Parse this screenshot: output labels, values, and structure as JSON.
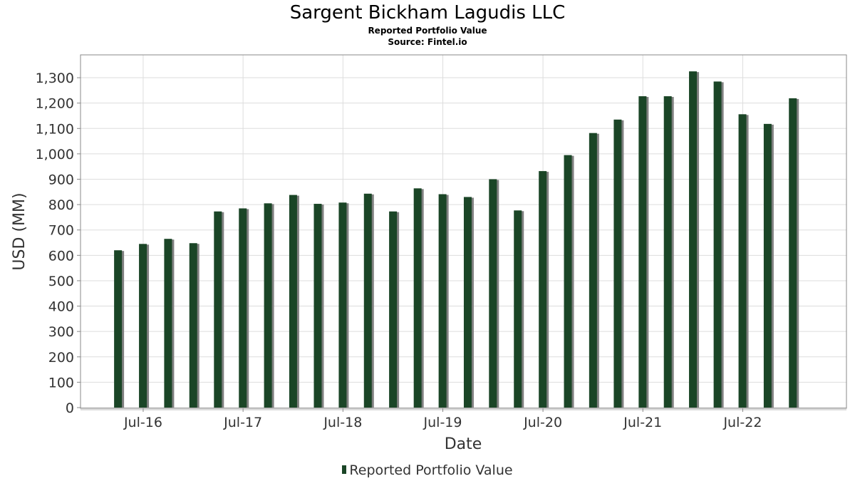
{
  "colors": {
    "bar": "#1a4526",
    "shadow": "#808080",
    "grid": "#dddddd",
    "frame": "#888888"
  },
  "chart_data": {
    "type": "bar",
    "title": "Sargent Bickham Lagudis LLC",
    "subtitle": "Reported Portfolio Value",
    "source": "Source: Fintel.io",
    "xlabel": "Date",
    "ylabel": "USD (MM)",
    "ylim": [
      0,
      1390
    ],
    "yticks": [
      0,
      100,
      200,
      300,
      400,
      500,
      600,
      700,
      800,
      900,
      1000,
      1100,
      1200,
      1300
    ],
    "ytick_labels": [
      "0",
      "100",
      "200",
      "300",
      "400",
      "500",
      "600",
      "700",
      "800",
      "900",
      "1,000",
      "1,100",
      "1,200",
      "1,300"
    ],
    "xlim": [
      "2015-11-15",
      "2023-07-15"
    ],
    "xticks": [
      {
        "date": "2016-07-01",
        "label": "Jul-16"
      },
      {
        "date": "2017-07-01",
        "label": "Jul-17"
      },
      {
        "date": "2018-07-01",
        "label": "Jul-18"
      },
      {
        "date": "2019-07-01",
        "label": "Jul-19"
      },
      {
        "date": "2020-07-01",
        "label": "Jul-20"
      },
      {
        "date": "2021-07-01",
        "label": "Jul-21"
      },
      {
        "date": "2022-07-01",
        "label": "Jul-22"
      }
    ],
    "grid": true,
    "legend_position": "bottom-center",
    "series": [
      {
        "name": "Reported Portfolio Value",
        "x": [
          "2016-03-31",
          "2016-06-30",
          "2016-09-30",
          "2016-12-31",
          "2017-03-31",
          "2017-06-30",
          "2017-09-30",
          "2017-12-31",
          "2018-03-31",
          "2018-06-30",
          "2018-09-30",
          "2018-12-31",
          "2019-03-31",
          "2019-06-30",
          "2019-09-30",
          "2019-12-31",
          "2020-03-31",
          "2020-06-30",
          "2020-09-30",
          "2020-12-31",
          "2021-03-31",
          "2021-06-30",
          "2021-09-30",
          "2021-12-31",
          "2022-03-31",
          "2022-06-30",
          "2022-09-30",
          "2022-12-31"
        ],
        "values": [
          620,
          645,
          665,
          648,
          773,
          785,
          805,
          838,
          803,
          808,
          843,
          773,
          864,
          841,
          830,
          900,
          777,
          932,
          995,
          1082,
          1135,
          1227,
          1227,
          1325,
          1285,
          1156,
          1118,
          1219
        ]
      }
    ]
  }
}
